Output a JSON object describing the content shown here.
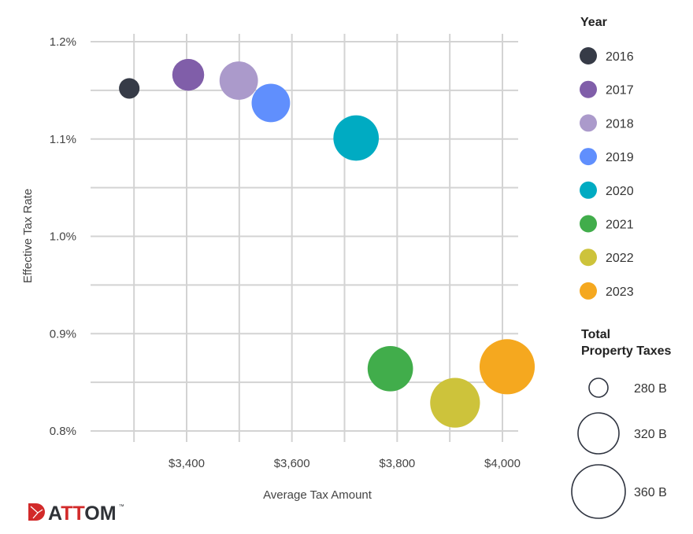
{
  "chart_data": {
    "type": "scatter",
    "subtype": "bubble",
    "xlabel": "Average Tax Amount",
    "ylabel": "Effective Tax Rate",
    "xlim": [
      3218,
      4030
    ],
    "ylim": [
      0.8,
      1.2
    ],
    "x_ticks": [
      3400,
      3600,
      3800,
      4000
    ],
    "x_tick_labels": [
      "$3,400",
      "$3,600",
      "$3,800",
      "$4,000"
    ],
    "x_minor_grid": [
      3300,
      3500,
      3700,
      3900
    ],
    "y_ticks": [
      0.8,
      0.9,
      1.0,
      1.1,
      1.2
    ],
    "y_tick_labels": [
      "0.8%",
      "0.9%",
      "1.0%",
      "1.1%",
      "1.2%"
    ],
    "y_minor_grid": [
      0.85,
      0.95,
      1.05,
      1.15
    ],
    "grid": true,
    "grid_color": "#d3d3d3",
    "legend_position": "right",
    "color_legend_title": "Year",
    "size_legend_title": [
      "Total",
      "Property Taxes"
    ],
    "size_legend": [
      {
        "value": 280,
        "label": "280 B"
      },
      {
        "value": 320,
        "label": "320 B"
      },
      {
        "value": 360,
        "label": "360 B"
      }
    ],
    "series": [
      {
        "name": "2016",
        "x": 3291,
        "y": 1.152,
        "size": 282,
        "color": "#363b47"
      },
      {
        "name": "2017",
        "x": 3403,
        "y": 1.166,
        "size": 300,
        "color": "#805ea9"
      },
      {
        "name": "2018",
        "x": 3499,
        "y": 1.16,
        "size": 314,
        "color": "#ab9acb"
      },
      {
        "name": "2019",
        "x": 3560,
        "y": 1.137,
        "size": 314,
        "color": "#608ffd"
      },
      {
        "name": "2020",
        "x": 3722,
        "y": 1.101,
        "size": 333,
        "color": "#00abc2"
      },
      {
        "name": "2021",
        "x": 3787,
        "y": 0.864,
        "size": 333,
        "color": "#41ad4b"
      },
      {
        "name": "2022",
        "x": 3910,
        "y": 0.829,
        "size": 347,
        "color": "#cdc33b"
      },
      {
        "name": "2023",
        "x": 4009,
        "y": 0.866,
        "size": 366,
        "color": "#f5a81f"
      }
    ]
  },
  "logo": {
    "text": "ATTOM",
    "tm": "™",
    "colors": {
      "red": "#d22a2a",
      "dark": "#2f3237"
    }
  }
}
